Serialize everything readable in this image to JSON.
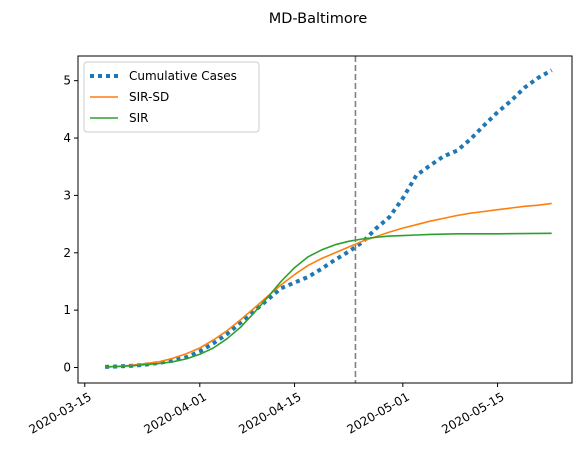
{
  "chart_data": {
    "type": "line",
    "title": "MD-Baltimore",
    "xlabel": "",
    "ylabel": "",
    "xlim": [
      "2020-03-14",
      "2020-05-26"
    ],
    "ylim": [
      -0.27,
      5.43
    ],
    "x_ticks": [
      "2020-03-15",
      "2020-04-01",
      "2020-04-15",
      "2020-05-01",
      "2020-05-15"
    ],
    "y_ticks": [
      0,
      1,
      2,
      3,
      4,
      5
    ],
    "grid": false,
    "legend_position": "top-left",
    "vertical_marker": {
      "x": "2020-04-24",
      "color": "#808080",
      "style": "dashed"
    },
    "series": [
      {
        "name": "Cumulative Cases",
        "style": "dotted",
        "color": "#1f77b4",
        "points": [
          [
            "2020-03-18",
            0.01
          ],
          [
            "2020-03-20",
            0.02
          ],
          [
            "2020-03-22",
            0.03
          ],
          [
            "2020-03-24",
            0.05
          ],
          [
            "2020-03-26",
            0.08
          ],
          [
            "2020-03-28",
            0.12
          ],
          [
            "2020-03-30",
            0.18
          ],
          [
            "2020-04-01",
            0.28
          ],
          [
            "2020-04-03",
            0.42
          ],
          [
            "2020-04-05",
            0.58
          ],
          [
            "2020-04-07",
            0.78
          ],
          [
            "2020-04-09",
            0.98
          ],
          [
            "2020-04-11",
            1.18
          ],
          [
            "2020-04-13",
            1.38
          ],
          [
            "2020-04-15",
            1.48
          ],
          [
            "2020-04-17",
            1.58
          ],
          [
            "2020-04-19",
            1.72
          ],
          [
            "2020-04-21",
            1.88
          ],
          [
            "2020-04-23",
            2.02
          ],
          [
            "2020-04-25",
            2.18
          ],
          [
            "2020-04-27",
            2.42
          ],
          [
            "2020-04-29",
            2.62
          ],
          [
            "2020-05-01",
            2.95
          ],
          [
            "2020-05-03",
            3.35
          ],
          [
            "2020-05-05",
            3.52
          ],
          [
            "2020-05-07",
            3.68
          ],
          [
            "2020-05-09",
            3.78
          ],
          [
            "2020-05-11",
            3.98
          ],
          [
            "2020-05-13",
            4.22
          ],
          [
            "2020-05-15",
            4.45
          ],
          [
            "2020-05-17",
            4.65
          ],
          [
            "2020-05-19",
            4.88
          ],
          [
            "2020-05-21",
            5.05
          ],
          [
            "2020-05-23",
            5.18
          ]
        ]
      },
      {
        "name": "SIR-SD",
        "style": "solid",
        "color": "#ff7f0e",
        "points": [
          [
            "2020-03-18",
            0.01
          ],
          [
            "2020-03-20",
            0.02
          ],
          [
            "2020-03-22",
            0.04
          ],
          [
            "2020-03-24",
            0.07
          ],
          [
            "2020-03-26",
            0.1
          ],
          [
            "2020-03-28",
            0.16
          ],
          [
            "2020-03-30",
            0.24
          ],
          [
            "2020-04-01",
            0.34
          ],
          [
            "2020-04-03",
            0.48
          ],
          [
            "2020-04-05",
            0.64
          ],
          [
            "2020-04-07",
            0.83
          ],
          [
            "2020-04-09",
            1.03
          ],
          [
            "2020-04-11",
            1.24
          ],
          [
            "2020-04-13",
            1.44
          ],
          [
            "2020-04-15",
            1.62
          ],
          [
            "2020-04-17",
            1.78
          ],
          [
            "2020-04-19",
            1.9
          ],
          [
            "2020-04-21",
            2.0
          ],
          [
            "2020-04-23",
            2.1
          ],
          [
            "2020-04-25",
            2.2
          ],
          [
            "2020-04-27",
            2.28
          ],
          [
            "2020-04-29",
            2.36
          ],
          [
            "2020-05-01",
            2.43
          ],
          [
            "2020-05-03",
            2.49
          ],
          [
            "2020-05-05",
            2.55
          ],
          [
            "2020-05-07",
            2.6
          ],
          [
            "2020-05-09",
            2.65
          ],
          [
            "2020-05-11",
            2.69
          ],
          [
            "2020-05-13",
            2.72
          ],
          [
            "2020-05-15",
            2.75
          ],
          [
            "2020-05-17",
            2.78
          ],
          [
            "2020-05-19",
            2.81
          ],
          [
            "2020-05-21",
            2.83
          ],
          [
            "2020-05-23",
            2.86
          ]
        ]
      },
      {
        "name": "SIR",
        "style": "solid",
        "color": "#2ca02c",
        "points": [
          [
            "2020-03-18",
            0.01
          ],
          [
            "2020-03-20",
            0.02
          ],
          [
            "2020-03-22",
            0.03
          ],
          [
            "2020-03-24",
            0.05
          ],
          [
            "2020-03-26",
            0.07
          ],
          [
            "2020-03-28",
            0.1
          ],
          [
            "2020-03-30",
            0.15
          ],
          [
            "2020-04-01",
            0.23
          ],
          [
            "2020-04-03",
            0.34
          ],
          [
            "2020-04-05",
            0.5
          ],
          [
            "2020-04-07",
            0.7
          ],
          [
            "2020-04-09",
            0.95
          ],
          [
            "2020-04-11",
            1.22
          ],
          [
            "2020-04-13",
            1.5
          ],
          [
            "2020-04-15",
            1.74
          ],
          [
            "2020-04-17",
            1.93
          ],
          [
            "2020-04-19",
            2.05
          ],
          [
            "2020-04-21",
            2.14
          ],
          [
            "2020-04-23",
            2.2
          ],
          [
            "2020-04-25",
            2.24
          ],
          [
            "2020-04-27",
            2.27
          ],
          [
            "2020-04-29",
            2.29
          ],
          [
            "2020-05-01",
            2.3
          ],
          [
            "2020-05-03",
            2.31
          ],
          [
            "2020-05-05",
            2.32
          ],
          [
            "2020-05-09",
            2.33
          ],
          [
            "2020-05-15",
            2.33
          ],
          [
            "2020-05-23",
            2.34
          ]
        ]
      }
    ]
  }
}
